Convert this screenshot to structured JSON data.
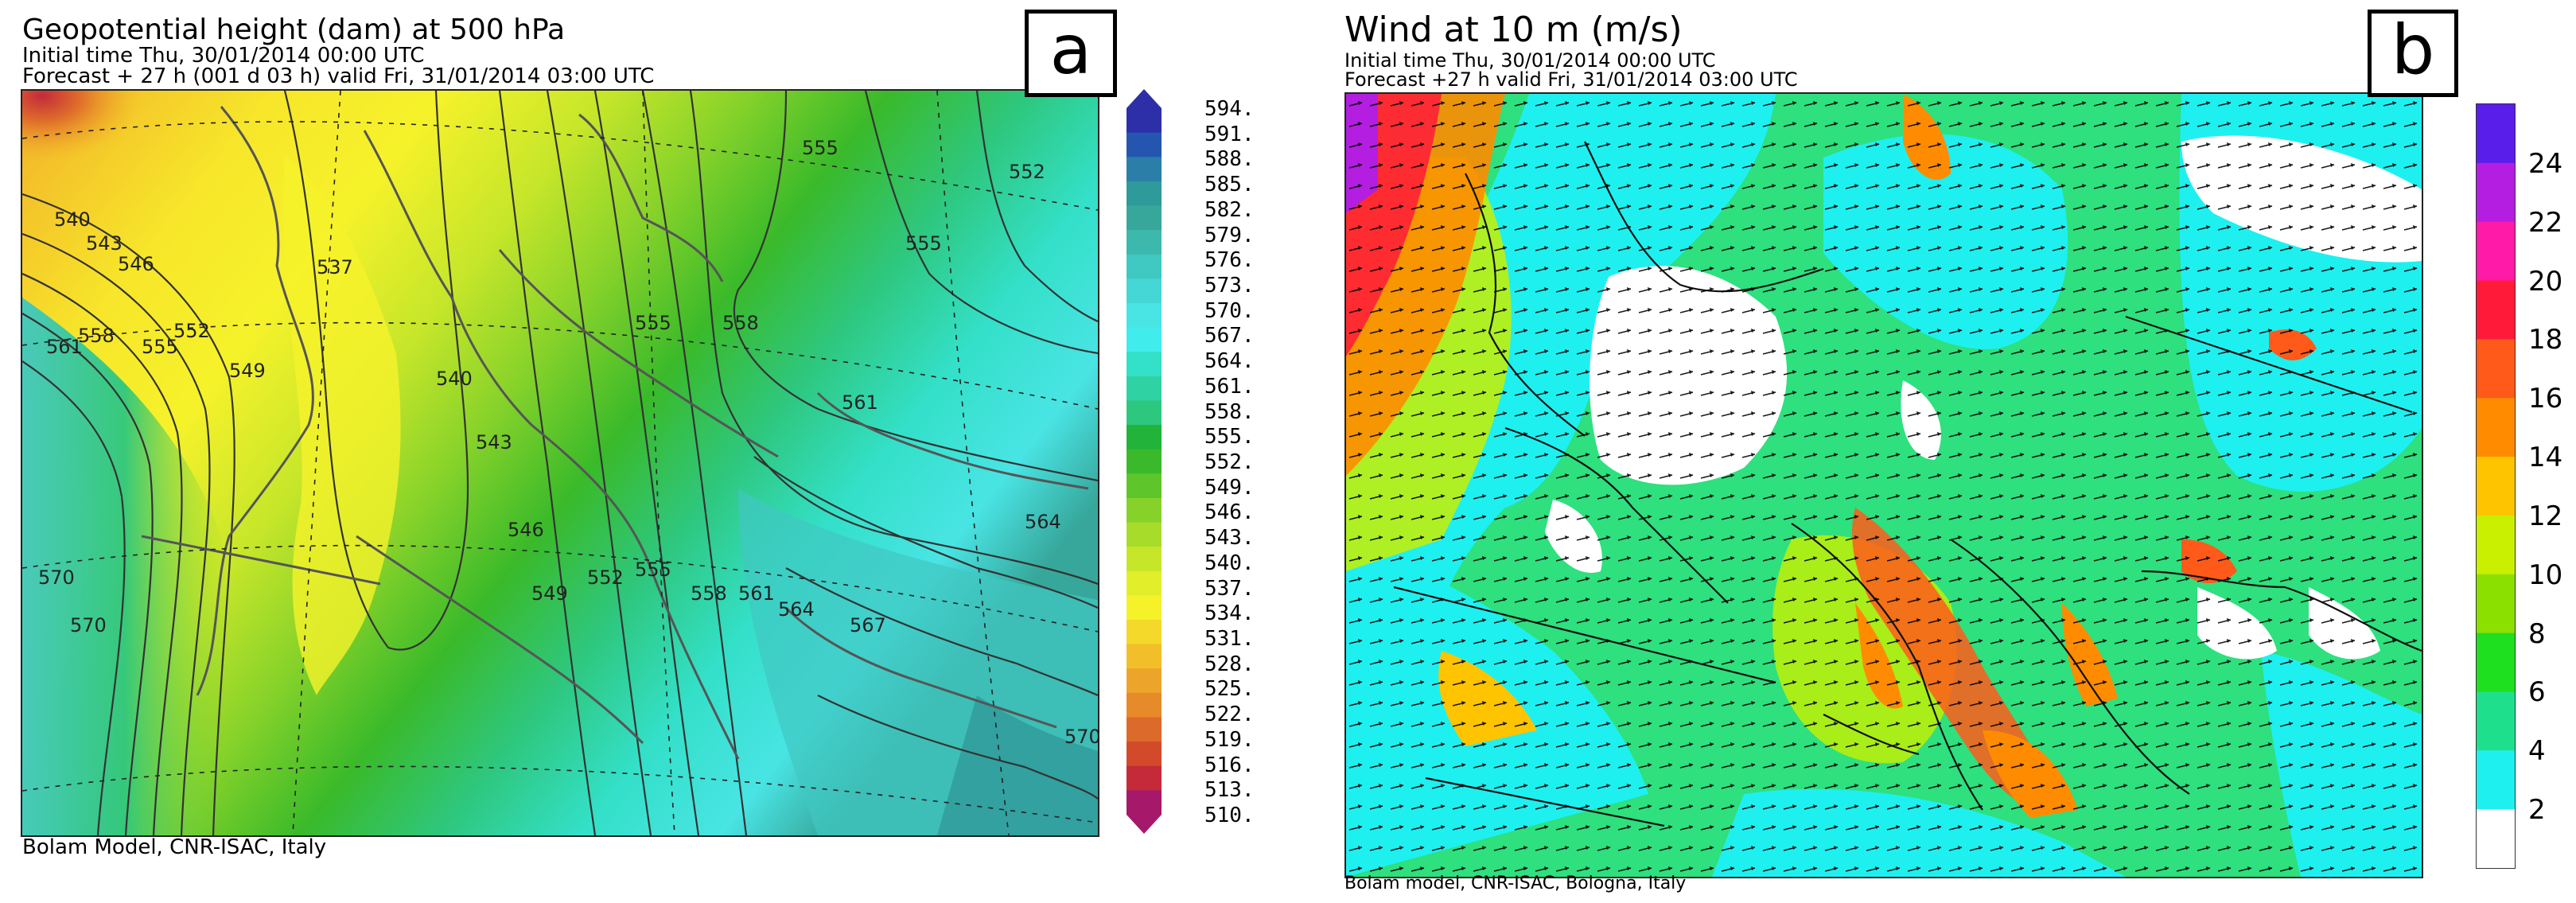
{
  "panel_a": {
    "title": "Geopotential height (dam) at 500 hPa",
    "initial_time": "Initial time  Thu, 30/01/2014  00:00 UTC",
    "forecast": "Forecast  +  27 h  (001 d 03 h)  valid Fri, 31/01/2014 03:00 UTC",
    "credit": "Bolam Model, CNR-ISAC, Italy",
    "letter": "a",
    "colorbar_labels": [
      "594.",
      "591.",
      "588.",
      "585.",
      "582.",
      "579.",
      "576.",
      "573.",
      "570.",
      "567.",
      "564.",
      "561.",
      "558.",
      "555.",
      "552.",
      "549.",
      "546.",
      "543.",
      "540.",
      "537.",
      "534.",
      "531.",
      "528.",
      "525.",
      "522.",
      "519.",
      "516.",
      "513.",
      "510."
    ],
    "colorbar_colors": [
      "#2c2fa8",
      "#2456b0",
      "#2a7ea8",
      "#2f9a9a",
      "#37a79b",
      "#3cb8ad",
      "#40c8c2",
      "#45d6d6",
      "#49e4e4",
      "#40ecec",
      "#33e0c8",
      "#2fd3a3",
      "#2ec77e",
      "#21b33a",
      "#3aba2a",
      "#5ec62a",
      "#86d22a",
      "#a8dc2a",
      "#c6e62a",
      "#e2ee2a",
      "#f6f22a",
      "#f4d82a",
      "#f2bf2a",
      "#eca42a",
      "#e68a2a",
      "#dc6a2a",
      "#d24a2a",
      "#c42a3a",
      "#a6186a"
    ],
    "contour_labels": [
      "540",
      "543",
      "546",
      "561",
      "558",
      "555",
      "552",
      "549",
      "537",
      "540",
      "543",
      "546",
      "549",
      "552",
      "555",
      "558",
      "561",
      "564",
      "567",
      "570",
      "555",
      "552",
      "555",
      "558",
      "561",
      "564",
      "570",
      "570",
      "555"
    ]
  },
  "panel_b": {
    "title": "Wind at 10 m (m/s)",
    "initial_time": "Initial time  Thu, 30/01/2014 00:00 UTC",
    "forecast": "Forecast +27 h valid  Fri, 31/01/2014 03:00 UTC",
    "credit": "Bolam model, CNR-ISAC, Bologna, Italy",
    "letter": "b",
    "colorbar_labels": [
      "24",
      "22",
      "20",
      "18",
      "16",
      "14",
      "12",
      "10",
      "8",
      "6",
      "4",
      "2"
    ],
    "colorbar_colors": [
      "#5a1eea",
      "#b41ee0",
      "#ff1aa8",
      "#ff1a3a",
      "#ff5a1a",
      "#ff8c00",
      "#ffc400",
      "#c8f000",
      "#8ce000",
      "#1ee01e",
      "#1ee08c",
      "#1ef0f0",
      "#ffffff"
    ]
  }
}
